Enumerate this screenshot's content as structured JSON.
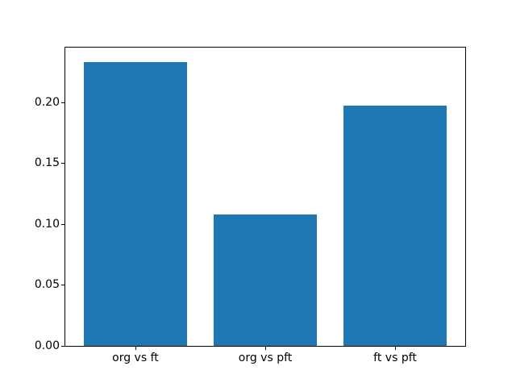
{
  "chart_data": {
    "type": "bar",
    "categories": [
      "org vs ft",
      "org vs pft",
      "ft vs pft"
    ],
    "values": [
      0.233,
      0.108,
      0.197
    ],
    "x": [
      0,
      1,
      2
    ],
    "bar_width": 0.8,
    "bar_color": "#1f77b4",
    "title": "",
    "xlabel": "",
    "ylabel": "",
    "xlim": [
      -0.54,
      2.54
    ],
    "ylim": [
      0,
      0.2447
    ],
    "yticks": [
      0.0,
      0.05,
      0.1,
      0.15,
      0.2
    ],
    "ytick_labels": [
      "0.00",
      "0.05",
      "0.10",
      "0.15",
      "0.20"
    ],
    "grid": false,
    "legend": "none",
    "axes_color": "#000000",
    "background_color": "#ffffff"
  }
}
